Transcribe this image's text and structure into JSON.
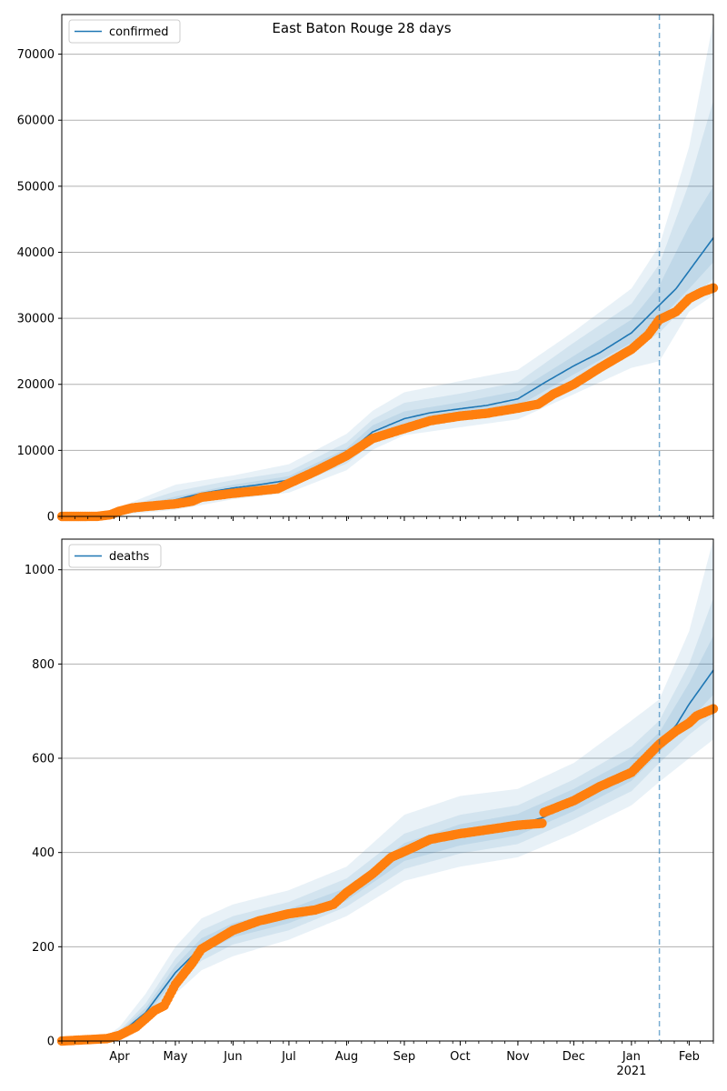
{
  "chart_data": {
    "type": "line",
    "title": "East Baton Rouge 28 days",
    "x_date_range": [
      "2020-03-01",
      "2021-02-14"
    ],
    "forecast_start": "2021-01-16",
    "x_ticks": [
      {
        "date": "2020-04-01",
        "label": "Apr"
      },
      {
        "date": "2020-05-01",
        "label": "May"
      },
      {
        "date": "2020-06-01",
        "label": "Jun"
      },
      {
        "date": "2020-07-01",
        "label": "Jul"
      },
      {
        "date": "2020-08-01",
        "label": "Aug"
      },
      {
        "date": "2020-09-01",
        "label": "Sep"
      },
      {
        "date": "2020-10-01",
        "label": "Oct"
      },
      {
        "date": "2020-11-01",
        "label": "Nov"
      },
      {
        "date": "2020-12-01",
        "label": "Dec"
      },
      {
        "date": "2021-01-01",
        "label": "Jan"
      },
      {
        "date": "2021-02-01",
        "label": "Feb"
      }
    ],
    "year_label": {
      "date": "2021-01-01",
      "label": "2021"
    },
    "colors": {
      "model": "#1f77b4",
      "observed": "#ff7f0e",
      "band": "#1f77b4",
      "grid": "#b0b0b0"
    },
    "grid": true,
    "legend_position": "top-left",
    "panels": [
      {
        "name": "confirmed",
        "legend": "confirmed",
        "ylim": [
          0,
          76000
        ],
        "yticks": [
          0,
          10000,
          20000,
          30000,
          40000,
          50000,
          60000,
          70000
        ],
        "model": [
          [
            "2020-03-01",
            0
          ],
          [
            "2020-03-25",
            100
          ],
          [
            "2020-04-01",
            700
          ],
          [
            "2020-04-15",
            1500
          ],
          [
            "2020-05-01",
            2500
          ],
          [
            "2020-05-15",
            3500
          ],
          [
            "2020-06-01",
            4300
          ],
          [
            "2020-06-15",
            4800
          ],
          [
            "2020-07-01",
            5500
          ],
          [
            "2020-07-15",
            6900
          ],
          [
            "2020-08-01",
            9500
          ],
          [
            "2020-08-15",
            12800
          ],
          [
            "2020-09-01",
            14800
          ],
          [
            "2020-09-15",
            15700
          ],
          [
            "2020-10-01",
            16300
          ],
          [
            "2020-10-15",
            16800
          ],
          [
            "2020-11-01",
            17800
          ],
          [
            "2020-11-15",
            20200
          ],
          [
            "2020-12-01",
            22800
          ],
          [
            "2020-12-15",
            24800
          ],
          [
            "2021-01-01",
            27800
          ],
          [
            "2021-01-16",
            32000
          ],
          [
            "2021-01-25",
            34500
          ],
          [
            "2021-02-01",
            37200
          ],
          [
            "2021-02-14",
            42200
          ]
        ],
        "bands": [
          [
            [
              "2020-03-01",
              0,
              0
            ],
            [
              "2020-03-25",
              0,
              200
            ],
            [
              "2020-04-01",
              200,
              1400
            ],
            [
              "2020-05-01",
              1000,
              4800
            ],
            [
              "2020-06-01",
              2600,
              6200
            ],
            [
              "2020-07-01",
              3600,
              7900
            ],
            [
              "2020-08-01",
              7000,
              12500
            ],
            [
              "2020-08-15",
              10100,
              16000
            ],
            [
              "2020-09-01",
              12300,
              18800
            ],
            [
              "2020-10-01",
              13500,
              20500
            ],
            [
              "2020-11-01",
              14700,
              22200
            ],
            [
              "2020-12-01",
              18500,
              28000
            ],
            [
              "2021-01-01",
              22500,
              34500
            ],
            [
              "2021-01-16",
              23500,
              41000
            ],
            [
              "2021-02-01",
              31000,
              56000
            ],
            [
              "2021-02-14",
              33500,
              75000
            ]
          ],
          [
            [
              "2020-03-01",
              0,
              0
            ],
            [
              "2020-03-25",
              20,
              160
            ],
            [
              "2020-04-01",
              350,
              1100
            ],
            [
              "2020-05-01",
              1500,
              3800
            ],
            [
              "2020-06-01",
              3200,
              5500
            ],
            [
              "2020-07-01",
              4400,
              6800
            ],
            [
              "2020-08-01",
              8000,
              11200
            ],
            [
              "2020-08-15",
              11100,
              14700
            ],
            [
              "2020-09-01",
              13300,
              17200
            ],
            [
              "2020-10-01",
              14600,
              18600
            ],
            [
              "2020-11-01",
              15800,
              20300
            ],
            [
              "2020-12-01",
              20300,
              26300
            ],
            [
              "2021-01-01",
              25000,
              32200
            ],
            [
              "2021-01-16",
              27800,
              38200
            ],
            [
              "2021-02-01",
              32500,
              50500
            ],
            [
              "2021-02-14",
              36000,
              63000
            ]
          ],
          [
            [
              "2020-03-01",
              0,
              0
            ],
            [
              "2020-03-25",
              50,
              130
            ],
            [
              "2020-04-01",
              500,
              900
            ],
            [
              "2020-05-01",
              2000,
              3000
            ],
            [
              "2020-06-01",
              3800,
              4800
            ],
            [
              "2020-07-01",
              5000,
              6100
            ],
            [
              "2020-08-01",
              8800,
              10300
            ],
            [
              "2020-08-15",
              11900,
              13800
            ],
            [
              "2020-09-01",
              14000,
              15900
            ],
            [
              "2020-10-01",
              15400,
              17300
            ],
            [
              "2020-11-01",
              16700,
              19000
            ],
            [
              "2020-12-01",
              21500,
              24300
            ],
            [
              "2021-01-01",
              26300,
              29800
            ],
            [
              "2021-01-16",
              29800,
              35000
            ],
            [
              "2021-02-01",
              34500,
              44000
            ],
            [
              "2021-02-14",
              38500,
              50000
            ]
          ]
        ],
        "observed": [
          [
            "2020-03-01",
            0
          ],
          [
            "2020-03-20",
            10
          ],
          [
            "2020-03-27",
            250
          ],
          [
            "2020-04-01",
            800
          ],
          [
            "2020-04-08",
            1300
          ],
          [
            "2020-04-15",
            1500
          ],
          [
            "2020-05-01",
            1900
          ],
          [
            "2020-05-10",
            2300
          ],
          [
            "2020-05-15",
            2900
          ],
          [
            "2020-06-01",
            3500
          ],
          [
            "2020-06-15",
            3900
          ],
          [
            "2020-06-25",
            4200
          ],
          [
            "2020-07-01",
            5000
          ],
          [
            "2020-07-15",
            6800
          ],
          [
            "2020-08-01",
            9200
          ],
          [
            "2020-08-15",
            11800
          ],
          [
            "2020-09-01",
            13300
          ],
          [
            "2020-09-15",
            14500
          ],
          [
            "2020-10-01",
            15200
          ],
          [
            "2020-10-15",
            15600
          ],
          [
            "2020-11-01",
            16400
          ],
          [
            "2020-11-12",
            17000
          ],
          [
            "2020-11-20",
            18500
          ],
          [
            "2020-12-01",
            20000
          ],
          [
            "2020-12-15",
            22500
          ],
          [
            "2021-01-01",
            25300
          ],
          [
            "2021-01-10",
            27500
          ],
          [
            "2021-01-16",
            29800
          ],
          [
            "2021-01-25",
            31000
          ],
          [
            "2021-02-01",
            33000
          ],
          [
            "2021-02-08",
            34000
          ],
          [
            "2021-02-14",
            34600
          ]
        ]
      },
      {
        "name": "deaths",
        "legend": "deaths",
        "ylim": [
          0,
          1065
        ],
        "yticks": [
          0,
          200,
          400,
          600,
          800,
          1000
        ],
        "model": [
          [
            "2020-03-01",
            0
          ],
          [
            "2020-03-25",
            5
          ],
          [
            "2020-04-01",
            15
          ],
          [
            "2020-04-15",
            60
          ],
          [
            "2020-05-01",
            145
          ],
          [
            "2020-05-15",
            200
          ],
          [
            "2020-06-01",
            235
          ],
          [
            "2020-06-15",
            250
          ],
          [
            "2020-07-01",
            265
          ],
          [
            "2020-07-15",
            280
          ],
          [
            "2020-08-01",
            310
          ],
          [
            "2020-08-15",
            360
          ],
          [
            "2020-09-01",
            400
          ],
          [
            "2020-09-15",
            422
          ],
          [
            "2020-10-01",
            438
          ],
          [
            "2020-10-15",
            448
          ],
          [
            "2020-11-01",
            458
          ],
          [
            "2020-11-15",
            475
          ],
          [
            "2020-12-01",
            510
          ],
          [
            "2020-12-15",
            540
          ],
          [
            "2021-01-01",
            575
          ],
          [
            "2021-01-16",
            632
          ],
          [
            "2021-01-25",
            670
          ],
          [
            "2021-02-01",
            715
          ],
          [
            "2021-02-14",
            787
          ]
        ],
        "bands": [
          [
            [
              "2020-03-01",
              0,
              0
            ],
            [
              "2020-03-25",
              0,
              10
            ],
            [
              "2020-04-01",
              5,
              30
            ],
            [
              "2020-04-15",
              35,
              100
            ],
            [
              "2020-05-01",
              100,
              200
            ],
            [
              "2020-05-15",
              150,
              260
            ],
            [
              "2020-06-01",
              180,
              290
            ],
            [
              "2020-07-01",
              215,
              320
            ],
            [
              "2020-08-01",
              265,
              370
            ],
            [
              "2020-09-01",
              340,
              480
            ],
            [
              "2020-10-01",
              370,
              520
            ],
            [
              "2020-11-01",
              390,
              535
            ],
            [
              "2020-12-01",
              440,
              590
            ],
            [
              "2021-01-01",
              500,
              680
            ],
            [
              "2021-01-16",
              550,
              725
            ],
            [
              "2021-02-01",
              600,
              870
            ],
            [
              "2021-02-14",
              640,
              1065
            ]
          ],
          [
            [
              "2020-03-01",
              0,
              0
            ],
            [
              "2020-03-25",
              2,
              8
            ],
            [
              "2020-04-01",
              10,
              22
            ],
            [
              "2020-04-15",
              45,
              80
            ],
            [
              "2020-05-01",
              120,
              175
            ],
            [
              "2020-05-15",
              170,
              235
            ],
            [
              "2020-06-01",
              205,
              265
            ],
            [
              "2020-07-01",
              235,
              295
            ],
            [
              "2020-08-01",
              285,
              345
            ],
            [
              "2020-09-01",
              365,
              440
            ],
            [
              "2020-10-01",
              398,
              480
            ],
            [
              "2020-11-01",
              418,
              500
            ],
            [
              "2020-12-01",
              470,
              555
            ],
            [
              "2021-01-01",
              530,
              625
            ],
            [
              "2021-01-16",
              590,
              680
            ],
            [
              "2021-02-01",
              650,
              800
            ],
            [
              "2021-02-14",
              690,
              940
            ]
          ],
          [
            [
              "2020-03-01",
              0,
              0
            ],
            [
              "2020-03-25",
              3,
              7
            ],
            [
              "2020-04-01",
              12,
              19
            ],
            [
              "2020-04-15",
              52,
              70
            ],
            [
              "2020-05-01",
              132,
              160
            ],
            [
              "2020-05-15",
              185,
              218
            ],
            [
              "2020-06-01",
              220,
              250
            ],
            [
              "2020-07-01",
              250,
              280
            ],
            [
              "2020-08-01",
              298,
              325
            ],
            [
              "2020-09-01",
              382,
              420
            ],
            [
              "2020-10-01",
              415,
              460
            ],
            [
              "2020-11-01",
              436,
              482
            ],
            [
              "2020-12-01",
              488,
              535
            ],
            [
              "2021-01-01",
              552,
              600
            ],
            [
              "2021-01-16",
              612,
              655
            ],
            [
              "2021-02-01",
              680,
              760
            ],
            [
              "2021-02-14",
              735,
              860
            ]
          ]
        ],
        "observed": [
          [
            "2020-03-01",
            0
          ],
          [
            "2020-03-25",
            5
          ],
          [
            "2020-04-01",
            12
          ],
          [
            "2020-04-10",
            30
          ],
          [
            "2020-04-20",
            65
          ],
          [
            "2020-04-25",
            75
          ],
          [
            "2020-05-01",
            120
          ],
          [
            "2020-05-10",
            165
          ],
          [
            "2020-05-15",
            195
          ],
          [
            "2020-06-01",
            235
          ],
          [
            "2020-06-15",
            255
          ],
          [
            "2020-07-01",
            270
          ],
          [
            "2020-07-15",
            278
          ],
          [
            "2020-07-25",
            290
          ],
          [
            "2020-08-01",
            315
          ],
          [
            "2020-08-15",
            355
          ],
          [
            "2020-08-25",
            390
          ],
          [
            "2020-09-01",
            402
          ],
          [
            "2020-09-15",
            428
          ],
          [
            "2020-10-01",
            440
          ],
          [
            "2020-10-15",
            448
          ],
          [
            "2020-11-01",
            458
          ],
          [
            "2020-11-14",
            462
          ],
          [
            "2020-11-15",
            485
          ],
          [
            "2020-12-01",
            510
          ],
          [
            "2020-12-15",
            540
          ],
          [
            "2021-01-01",
            570
          ],
          [
            "2021-01-16",
            630
          ],
          [
            "2021-01-25",
            658
          ],
          [
            "2021-02-01",
            675
          ],
          [
            "2021-02-05",
            690
          ],
          [
            "2021-02-14",
            705
          ]
        ]
      }
    ]
  }
}
